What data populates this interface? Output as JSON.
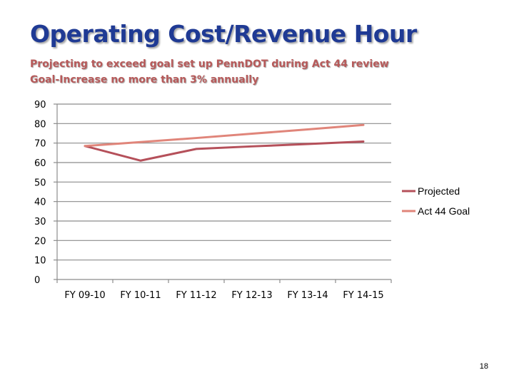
{
  "slide": {
    "title": "Operating Cost/Revenue Hour",
    "subtitle_lines": [
      "Projecting to exceed goal set up PennDOT during Act 44 review",
      "Goal-Increase no more than 3% annually"
    ],
    "page_number": "18"
  },
  "chart_data": {
    "type": "line",
    "categories": [
      "FY 09-10",
      "FY 10-11",
      "FY 11-12",
      "FY 12-13",
      "FY 13-14",
      "FY 14-15"
    ],
    "series": [
      {
        "name": "Projected",
        "values": [
          68.5,
          61,
          67,
          68.3,
          69.5,
          70.8
        ],
        "color": "#b5505a"
      },
      {
        "name": "Act 44 Goal",
        "values": [
          68.5,
          70.5,
          72.6,
          74.8,
          77.0,
          79.3
        ],
        "color": "#e0857a"
      }
    ],
    "yticks": [
      0,
      10,
      20,
      30,
      40,
      50,
      60,
      70,
      80,
      90
    ],
    "ylim": [
      0,
      90
    ],
    "grid": true,
    "legend_position": "right",
    "title": "",
    "xlabel": "",
    "ylabel": ""
  }
}
